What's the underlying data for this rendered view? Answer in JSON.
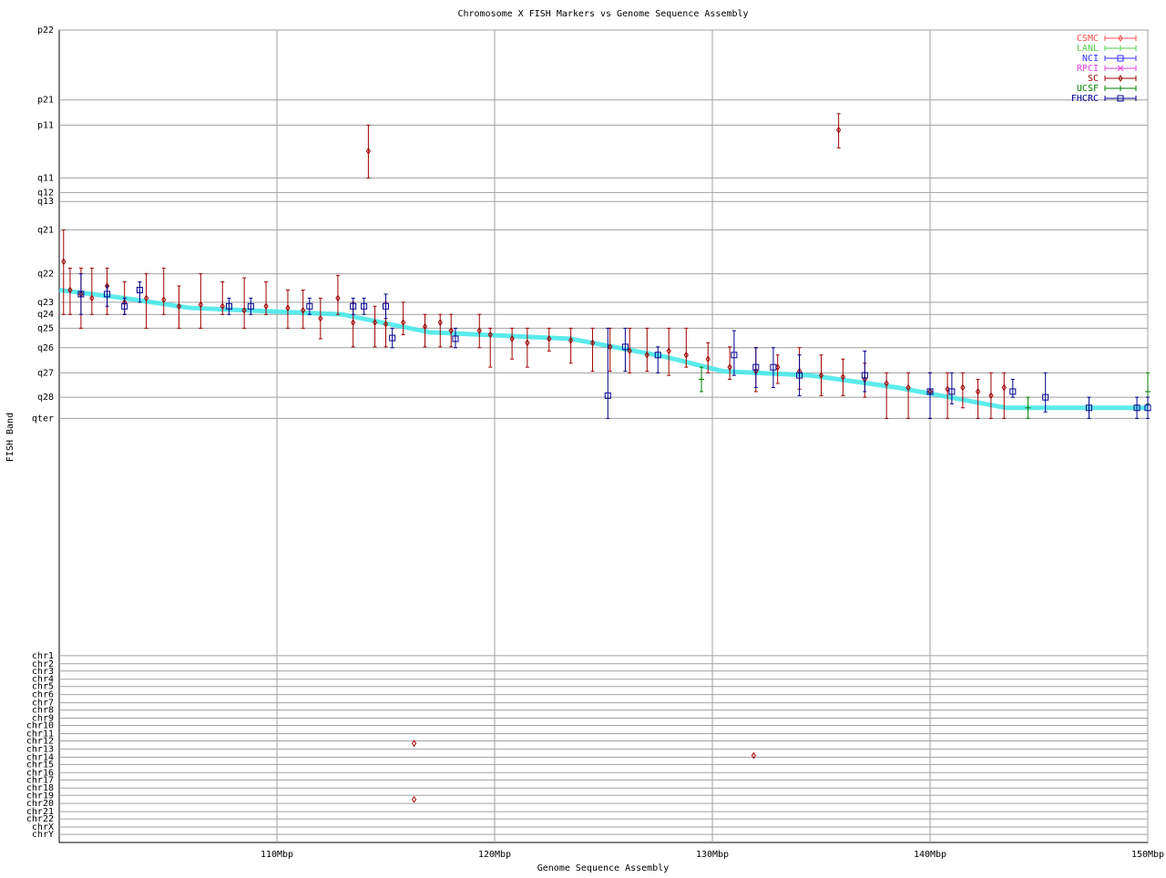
{
  "chart_data": {
    "type": "scatter",
    "title": "Chromosome X FISH Markers vs Genome Sequence Assembly",
    "x_label": "Genome Sequence Assembly",
    "y_label": "FISH Band",
    "xlim": [
      100,
      150
    ],
    "ylim": [
      0,
      100
    ],
    "grid": true,
    "legend": "top-right",
    "xticks": [
      {
        "value": 110,
        "label": "110Mbp"
      },
      {
        "value": 120,
        "label": "120Mbp"
      },
      {
        "value": 130,
        "label": "130Mbp"
      },
      {
        "value": 140,
        "label": "140Mbp"
      },
      {
        "value": 150,
        "label": "150Mbp"
      }
    ],
    "yticks": [
      {
        "value": 100,
        "label": "p22"
      },
      {
        "value": 91.4,
        "label": "p21"
      },
      {
        "value": 88.3,
        "label": "p11"
      },
      {
        "value": 81.8,
        "label": "q11"
      },
      {
        "value": 80.0,
        "label": "q12"
      },
      {
        "value": 78.9,
        "label": "q13"
      },
      {
        "value": 75.4,
        "label": "q21"
      },
      {
        "value": 70.0,
        "label": "q22"
      },
      {
        "value": 66.5,
        "label": "q23"
      },
      {
        "value": 65.0,
        "label": "q24"
      },
      {
        "value": 63.3,
        "label": "q25"
      },
      {
        "value": 60.9,
        "label": "q26"
      },
      {
        "value": 57.8,
        "label": "q27"
      },
      {
        "value": 54.8,
        "label": "q28"
      },
      {
        "value": 52.2,
        "label": "qter"
      },
      {
        "value": 23.0,
        "label": "chr1"
      },
      {
        "value": 22.0,
        "label": "chr2"
      },
      {
        "value": 21.1,
        "label": "chr3"
      },
      {
        "value": 20.1,
        "label": "chr4"
      },
      {
        "value": 19.2,
        "label": "chr5"
      },
      {
        "value": 18.2,
        "label": "chr6"
      },
      {
        "value": 17.2,
        "label": "chr7"
      },
      {
        "value": 16.3,
        "label": "chr8"
      },
      {
        "value": 15.3,
        "label": "chr9"
      },
      {
        "value": 14.4,
        "label": "chr10"
      },
      {
        "value": 13.4,
        "label": "chr11"
      },
      {
        "value": 12.5,
        "label": "chr12"
      },
      {
        "value": 11.5,
        "label": "chr13"
      },
      {
        "value": 10.5,
        "label": "chr14"
      },
      {
        "value": 9.6,
        "label": "chr15"
      },
      {
        "value": 8.6,
        "label": "chr16"
      },
      {
        "value": 7.7,
        "label": "chr17"
      },
      {
        "value": 6.7,
        "label": "chr18"
      },
      {
        "value": 5.8,
        "label": "chr19"
      },
      {
        "value": 4.8,
        "label": "chr20"
      },
      {
        "value": 3.8,
        "label": "chr21"
      },
      {
        "value": 2.9,
        "label": "chr22"
      },
      {
        "value": 1.9,
        "label": "chrX"
      },
      {
        "value": 1.0,
        "label": "chrY"
      }
    ],
    "reference": {
      "color": "#40e8e8",
      "x": [
        100,
        103,
        106,
        113,
        117,
        123.5,
        127.8,
        130.5,
        134.5,
        138.5,
        143.5,
        150
      ],
      "values": [
        68.0,
        67.0,
        65.8,
        65.0,
        62.8,
        62.0,
        59.8,
        58.0,
        57.5,
        56.0,
        53.5,
        53.5
      ]
    },
    "series": [
      {
        "name": "CSMC",
        "color": "#ff4c4c",
        "marker": "diamond",
        "x": [],
        "values": [],
        "lower": [],
        "upper": []
      },
      {
        "name": "LANL",
        "color": "#50d050",
        "marker": "plus",
        "x": [],
        "values": [],
        "lower": [],
        "upper": []
      },
      {
        "name": "NCI",
        "color": "#3030ff",
        "marker": "square",
        "x": [],
        "values": [],
        "lower": [],
        "upper": []
      },
      {
        "name": "RPCI",
        "color": "#e040e0",
        "marker": "cross",
        "x": [],
        "values": [],
        "lower": [],
        "upper": []
      },
      {
        "name": "SC",
        "color": "#a00000",
        "marker": "diamond",
        "x": [
          100.2,
          100.5,
          101.0,
          101.5,
          102.2,
          103.0,
          104.0,
          104.8,
          105.5,
          106.5,
          107.5,
          108.5,
          109.5,
          110.5,
          111.2,
          112.0,
          112.8,
          113.5,
          114.2,
          114.5,
          115.0,
          115.8,
          116.3,
          116.3,
          116.8,
          117.5,
          118.0,
          119.3,
          119.8,
          120.8,
          121.5,
          122.5,
          123.5,
          124.5,
          125.3,
          126.2,
          127.0,
          128.0,
          128.8,
          129.8,
          130.8,
          131.9,
          132.0,
          133.0,
          134.0,
          135.0,
          135.8,
          136.0,
          137.0,
          138.0,
          139.0,
          140.0,
          140.8,
          141.5,
          142.2,
          142.8,
          143.4
        ],
        "values": [
          71.5,
          68.0,
          67.5,
          67.0,
          68.5,
          66.5,
          67.0,
          66.8,
          66.0,
          66.2,
          66.0,
          65.5,
          66.0,
          65.8,
          65.5,
          64.5,
          67.0,
          64.0,
          85.1,
          64.0,
          63.8,
          64.0,
          12.2,
          5.3,
          63.5,
          64.0,
          63.0,
          63.0,
          62.5,
          62.0,
          61.5,
          62.0,
          61.8,
          61.5,
          61.0,
          60.5,
          60.0,
          60.5,
          60.0,
          59.5,
          58.5,
          10.7,
          58.0,
          58.5,
          58.0,
          57.5,
          87.7,
          57.3,
          57.0,
          56.5,
          56.0,
          55.5,
          55.8,
          56.0,
          55.5,
          55.0,
          56.0
        ],
        "lower": [
          65.0,
          65.0,
          63.3,
          65.0,
          65.0,
          65.0,
          63.3,
          65.0,
          63.3,
          63.3,
          65.0,
          63.3,
          65.0,
          63.3,
          63.3,
          62.0,
          65.0,
          61.0,
          81.8,
          61.0,
          61.0,
          62.5,
          null,
          null,
          61.0,
          61.0,
          61.0,
          60.9,
          58.5,
          59.5,
          58.5,
          60.5,
          59.0,
          58.0,
          58.0,
          57.8,
          58.0,
          57.5,
          58.5,
          57.8,
          57.0,
          null,
          55.5,
          56.5,
          55.8,
          55.0,
          85.5,
          55.0,
          54.8,
          52.2,
          52.2,
          52.2,
          52.2,
          53.5,
          52.2,
          52.2,
          52.2
        ],
        "upper": [
          75.4,
          70.7,
          70.7,
          70.7,
          70.7,
          69.0,
          70.0,
          70.7,
          68.5,
          70.0,
          69.0,
          69.5,
          69.0,
          68.0,
          68.0,
          67.0,
          69.8,
          66.5,
          88.3,
          66.0,
          66.5,
          66.5,
          null,
          null,
          65.0,
          65.0,
          65.0,
          65.0,
          63.3,
          63.3,
          63.3,
          63.3,
          63.3,
          63.3,
          63.3,
          63.3,
          63.3,
          63.3,
          63.3,
          61.5,
          61.0,
          null,
          60.9,
          60.0,
          60.9,
          60.0,
          89.7,
          59.5,
          59.0,
          57.8,
          57.8,
          57.8,
          57.8,
          57.8,
          57.0,
          57.8,
          57.8
        ]
      },
      {
        "name": "UCSF",
        "color": "#008000",
        "marker": "plus",
        "x": [
          129.5,
          144.5,
          150.0
        ],
        "values": [
          57.0,
          53.5,
          55.5
        ],
        "lower": [
          55.5,
          52.2,
          54.0
        ],
        "upper": [
          58.5,
          54.8,
          57.8
        ]
      },
      {
        "name": "FHCRC",
        "color": "#000090",
        "marker": "square",
        "x": [
          101.0,
          102.2,
          103.0,
          103.7,
          107.8,
          108.8,
          111.5,
          113.5,
          114.0,
          115.0,
          115.3,
          118.2,
          125.2,
          126.0,
          127.5,
          131.0,
          132.0,
          132.8,
          134.0,
          137.0,
          140.0,
          141.0,
          143.8,
          145.3,
          147.3,
          149.5,
          150.0
        ],
        "values": [
          67.5,
          67.5,
          66.0,
          68.0,
          66.0,
          66.0,
          66.0,
          66.0,
          66.0,
          66.0,
          62.1,
          62.0,
          55.0,
          61.0,
          60.0,
          60.0,
          58.5,
          58.5,
          57.5,
          57.5,
          55.5,
          55.5,
          55.5,
          54.8,
          53.5,
          53.5,
          53.5
        ],
        "lower": [
          65.0,
          66.0,
          65.0,
          66.5,
          65.0,
          65.0,
          65.0,
          65.0,
          65.0,
          64.5,
          60.9,
          60.9,
          52.2,
          58.0,
          57.8,
          57.5,
          56.0,
          56.0,
          55.0,
          55.5,
          52.2,
          54.0,
          54.8,
          53.0,
          52.2,
          52.2,
          52.2
        ],
        "upper": [
          70.0,
          68.5,
          67.0,
          69.0,
          67.0,
          67.0,
          67.0,
          67.0,
          67.0,
          67.5,
          63.3,
          63.3,
          63.3,
          63.3,
          61.0,
          63.0,
          60.9,
          60.9,
          60.0,
          60.5,
          57.8,
          57.8,
          57.0,
          57.8,
          54.8,
          54.8,
          54.8
        ]
      }
    ]
  }
}
